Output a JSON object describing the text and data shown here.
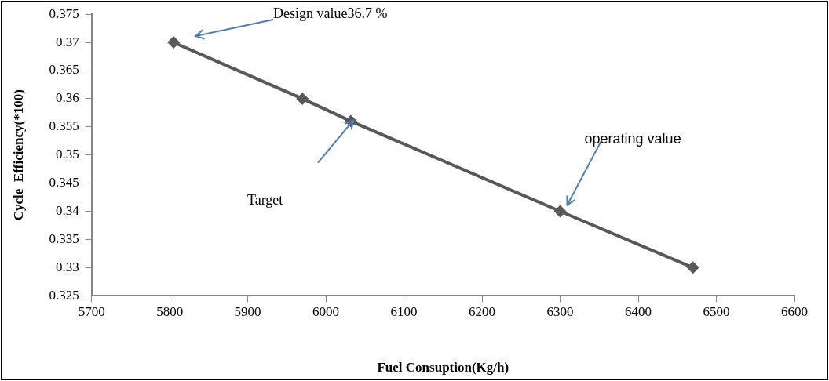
{
  "chart_data": {
    "type": "line",
    "xlabel": "Fuel Consuption(Kg/h)",
    "ylabel": "Cycle  Efficiency(*100)",
    "x": [
      5805,
      5970,
      6032,
      6300,
      6470
    ],
    "series": [
      {
        "color": "#595959",
        "values": [
          0.37,
          0.36,
          0.356,
          0.34,
          0.33
        ]
      }
    ],
    "marker": "diamond",
    "line_style": "solid",
    "grid": false,
    "legend": false,
    "xlim": [
      5700,
      6600
    ],
    "xticks": [
      5700,
      5800,
      5900,
      6000,
      6100,
      6200,
      6300,
      6400,
      6500,
      6600
    ],
    "ylim": [
      0.325,
      0.375
    ],
    "yticks": [
      0.325,
      0.33,
      0.335,
      0.34,
      0.345,
      0.35,
      0.355,
      0.36,
      0.365,
      0.37,
      0.375
    ],
    "annotations": [
      "Design value36.7 %",
      "Target",
      "operating value"
    ]
  }
}
